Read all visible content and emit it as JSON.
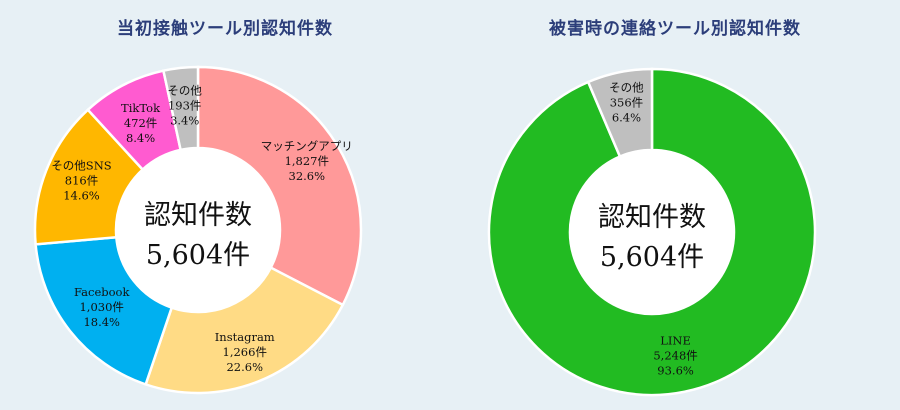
{
  "chart_data": [
    {
      "type": "pie",
      "title": "当初接触ツール別認知件数",
      "center_title": "認知件数",
      "center_value": "5,604件",
      "slices": [
        {
          "name": "マッチングアプリ",
          "count": "1,827件",
          "pct": "32.6%",
          "value": 32.6,
          "color": "#ff9999"
        },
        {
          "name": "Instagram",
          "count": "1,266件",
          "pct": "22.6%",
          "value": 22.6,
          "color": "#ffdb85"
        },
        {
          "name": "Facebook",
          "count": "1,030件",
          "pct": "18.4%",
          "value": 18.4,
          "color": "#00b0f0"
        },
        {
          "name": "その他SNS",
          "count": "816件",
          "pct": "14.6%",
          "value": 14.6,
          "color": "#ffb700"
        },
        {
          "name": "TikTok",
          "count": "472件",
          "pct": "8.4%",
          "value": 8.4,
          "color": "#ff5bd0"
        },
        {
          "name": "その他",
          "count": "193件",
          "pct": "3.4%",
          "value": 3.4,
          "color": "#bfbfbf"
        }
      ]
    },
    {
      "type": "pie",
      "title": "被害時の連絡ツール別認知件数",
      "center_title": "認知件数",
      "center_value": "5,604件",
      "slices": [
        {
          "name": "LINE",
          "count": "5,248件",
          "pct": "93.6%",
          "value": 93.6,
          "color": "#22bb22"
        },
        {
          "name": "その他",
          "count": "356件",
          "pct": "6.4%",
          "value": 6.4,
          "color": "#bfbfbf"
        }
      ]
    }
  ]
}
